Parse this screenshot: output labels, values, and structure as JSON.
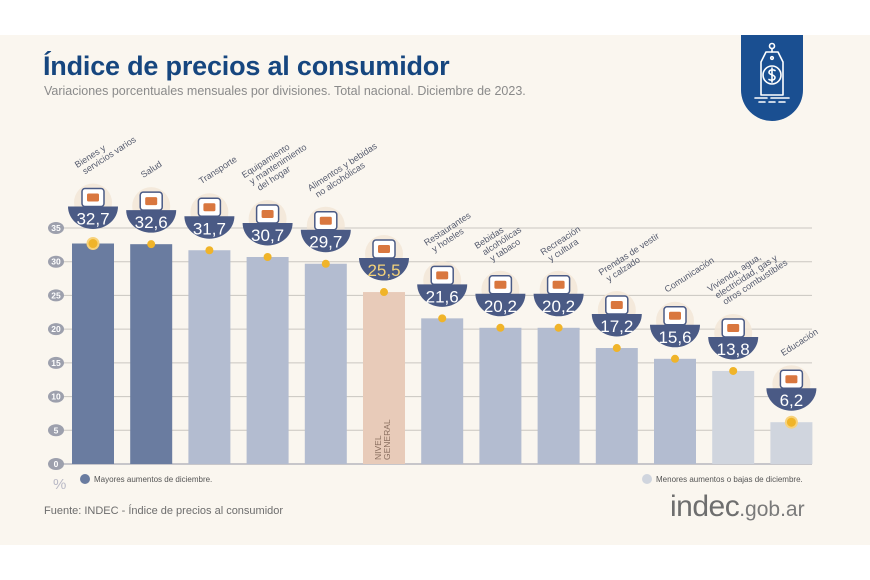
{
  "header": {
    "title": "Índice de precios al consumidor",
    "subtitle": "Variaciones porcentuales mensuales por divisiones. Total nacional. Diciembre de 2023."
  },
  "logo_badge": {
    "icon": "price-tag-dollar-icon",
    "color": "#1a4f91"
  },
  "footer": {
    "source": "Fuente: INDEC - Índice de precios al consumidor",
    "brand_main": "indec",
    "brand_domain": ".gob.ar"
  },
  "legend": {
    "high": {
      "label": "Mayores aumentos de diciembre.",
      "color": "#6a7ca0"
    },
    "low": {
      "label": "Menores aumentos o bajas de diciembre.",
      "color": "#d0d5de"
    }
  },
  "colors": {
    "high": "#6a7ca0",
    "mid": "#b3bcd0",
    "low": "#d0d5de",
    "general": "#e8cbb9",
    "badge": "#4a5a85",
    "marker": "#f0b429",
    "grid": "#c9c6c0"
  },
  "chart_data": {
    "type": "bar",
    "title": "Índice de precios al consumidor",
    "subtitle": "Variaciones porcentuales mensuales por divisiones. Total nacional. Diciembre de 2023.",
    "ylabel": "%",
    "xlabel": "",
    "ylim": [
      0,
      35
    ],
    "yticks": [
      0,
      5,
      10,
      15,
      20,
      25,
      30,
      35
    ],
    "grid": true,
    "legend_position": "bottom",
    "categories": [
      "Bienes y servicios varios",
      "Salud",
      "Transporte",
      "Equipamiento y mantenimiento del hogar",
      "Alimentos y bebidas no alcohólicas",
      "Nivel general",
      "Restaurantes y hoteles",
      "Bebidas alcohólicas y tabaco",
      "Recreación y cultura",
      "Prendas de vestir y calzado",
      "Comunicación",
      "Vivienda, agua, electricidad, gas y otros combustibles",
      "Educación"
    ],
    "category_label_lines": [
      [
        "Bienes y",
        "servicios varios"
      ],
      [
        "Salud"
      ],
      [
        "Transporte"
      ],
      [
        "Equipamiento",
        "y mantenimiento",
        "del hogar"
      ],
      [
        "Alimentos y bebidas",
        "no alcohólicas"
      ],
      [],
      [
        "Restaurantes",
        "y hoteles"
      ],
      [
        "Bebidas",
        "alcohólicas",
        "y tabaco"
      ],
      [
        "Recreación",
        "y cultura"
      ],
      [
        "Prendas de vestir",
        "y calzado"
      ],
      [
        "Comunicación"
      ],
      [
        "Vivienda, agua,",
        "electricidad, gas y",
        "otros combustibles"
      ],
      [
        "Educación"
      ]
    ],
    "values": [
      32.7,
      32.6,
      31.7,
      30.7,
      29.7,
      25.5,
      21.6,
      20.2,
      20.2,
      17.2,
      15.6,
      13.8,
      6.2
    ],
    "value_labels": [
      "32,7",
      "32,6",
      "31,7",
      "30,7",
      "29,7",
      "25,5",
      "21,6",
      "20,2",
      "20,2",
      "17,2",
      "15,6",
      "13,8",
      "6,2"
    ],
    "groups": [
      "high",
      "high",
      "mid",
      "mid",
      "mid",
      "general",
      "mid",
      "mid",
      "mid",
      "mid",
      "mid",
      "low",
      "low"
    ],
    "icons": [
      "comb-scissors-icon",
      "first-aid-kit-icon",
      "car-sube-card-icon",
      "washing-machine-icon",
      "food-chicken-icon",
      "shopping-basket-icon",
      "plate-cutlery-icon",
      "wine-cigarette-icon",
      "beach-umbrella-icon",
      "tshirt-shoe-icon",
      "smartphone-icon",
      "lightbulb-tools-icon",
      "notebook-icon"
    ],
    "general_bar_label": [
      "NIVEL",
      "GENERAL"
    ]
  }
}
